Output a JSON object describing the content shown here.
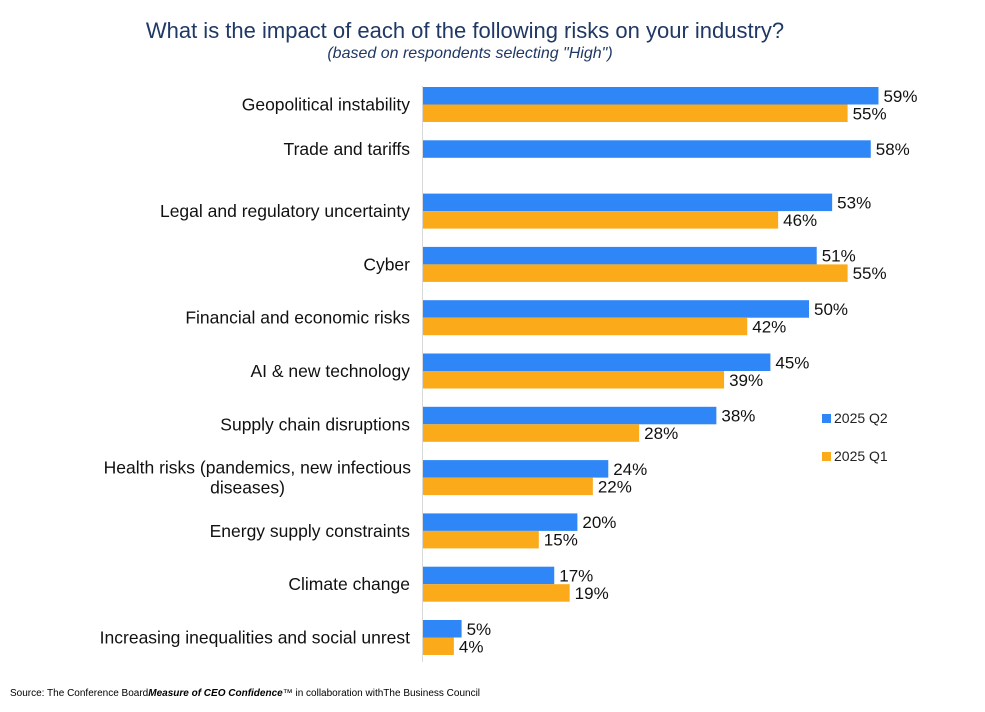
{
  "title": "What is the impact of each of the following risks on your industry?",
  "subtitle": "(based on respondents selecting \"High\")",
  "source": {
    "prefix": "Source: The Conference Board",
    "emphasis": "Measure of CEO Confidence",
    "suffix": "™ in collaboration withThe Business Council"
  },
  "chart_data": {
    "type": "bar",
    "orientation": "horizontal",
    "categories": [
      "Geopolitical instability",
      "Trade and tariffs",
      "Legal and regulatory uncertainty",
      "Cyber",
      "Financial and economic risks",
      "AI & new technology",
      "Supply chain disruptions",
      "Health risks (pandemics, new infectious diseases)",
      "Energy supply constraints",
      "Climate change",
      "Increasing inequalities and social unrest"
    ],
    "series": [
      {
        "name": "2025 Q2",
        "color": "#2F86F6",
        "values": [
          59,
          58,
          53,
          51,
          50,
          45,
          38,
          24,
          20,
          17,
          5
        ]
      },
      {
        "name": "2025 Q1",
        "color": "#FBAA19",
        "values": [
          55,
          null,
          46,
          55,
          42,
          39,
          28,
          22,
          15,
          19,
          4
        ]
      }
    ],
    "value_suffix": "%",
    "xlim": [
      0,
      100
    ],
    "grid": false,
    "legend_position": "right"
  }
}
